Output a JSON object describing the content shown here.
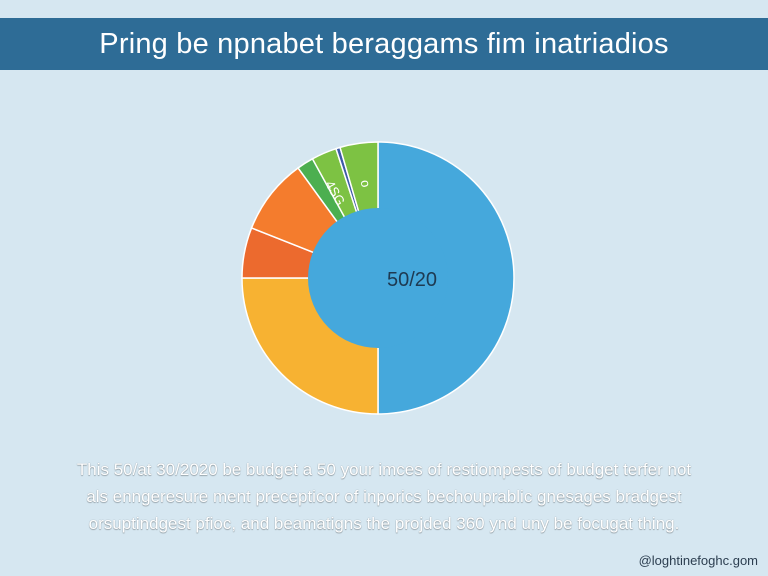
{
  "header": {
    "title": "Pring be npnabet beraggams fim inatriadios"
  },
  "chart_data": {
    "type": "pie",
    "center_label": "50/20",
    "slices": [
      {
        "value": 50,
        "color": "#45a8dc"
      },
      {
        "value": 25,
        "color": "#f7b232"
      },
      {
        "value": 6,
        "color": "#ec6a2e"
      },
      {
        "value": 9,
        "color": "#f47c2d"
      },
      {
        "value": 2,
        "color": "#4caf50"
      },
      {
        "value": 3,
        "color": "#7dc243"
      },
      {
        "value": 0.5,
        "color": "#3d5aa6"
      },
      {
        "value": 4.5,
        "color": "#7dc243"
      }
    ],
    "slice_labels": [
      "4SG",
      "o"
    ],
    "colors": {
      "background": "#d6e7f1",
      "title_bar": "#2e6c96"
    }
  },
  "caption": {
    "line1": "This 50/at 30/2020 be budget a 50 your imces of restiompests of budget terfer not",
    "line2": "als enngeresure ment precepticor of inporics bechouprablic gnesages bradgest",
    "line3": "orsuptindgest pfioc, and beamatigns the projded 360 ynd uny be focugat thing."
  },
  "footer": {
    "watermark": "@loghtinefoghc.gom"
  }
}
